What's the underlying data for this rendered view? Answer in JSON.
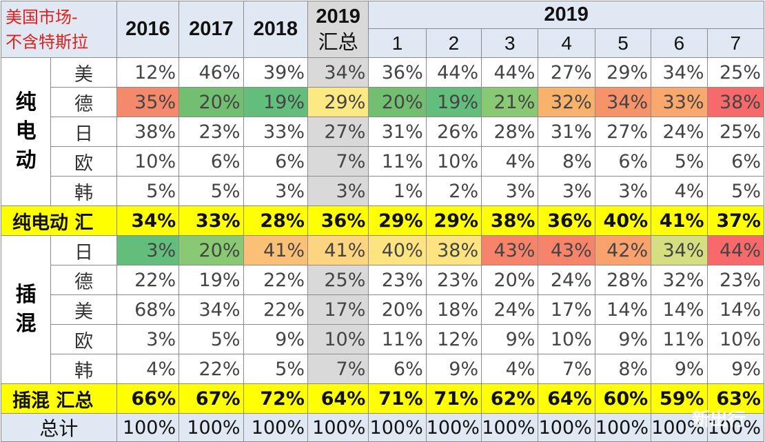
{
  "header": {
    "corner_line1": "美国市场-",
    "corner_line2": "不含特斯拉",
    "years": [
      "2016",
      "2017",
      "2018"
    ],
    "summary_year": "2019",
    "summary_label": "汇总",
    "span_year": "2019",
    "months": [
      "1",
      "2",
      "3",
      "4",
      "5",
      "6",
      "7"
    ]
  },
  "bev_group_label": "纯电动",
  "phev_group_label": "插混",
  "total_label": "总计",
  "watermark": "新出行",
  "colors": {
    "header_bg": "#dfe8f3",
    "summary_row_bg": "#ffff00",
    "summary_col_bg": "#d9d9d9",
    "corner_text": "#e0201c"
  },
  "chart_data": {
    "type": "table",
    "title": "美国市场-不含特斯拉",
    "columns": [
      "2016",
      "2017",
      "2018",
      "2019汇总",
      "2019-1",
      "2019-2",
      "2019-3",
      "2019-4",
      "2019-5",
      "2019-6",
      "2019-7"
    ],
    "sections": [
      {
        "name": "纯电动",
        "rows": [
          {
            "label": "美",
            "values": [
              "12%",
              "46%",
              "39%",
              "34%",
              "36%",
              "44%",
              "44%",
              "27%",
              "29%",
              "34%",
              "25%"
            ]
          },
          {
            "label": "德",
            "values": [
              "35%",
              "20%",
              "19%",
              "29%",
              "20%",
              "19%",
              "21%",
              "32%",
              "34%",
              "33%",
              "38%"
            ],
            "colors": [
              "#f4896b",
              "#72bf72",
              "#63be7b",
              "#fce983",
              "#72bf72",
              "#63be7b",
              "#8ac974",
              "#f9b26c",
              "#f7936b",
              "#faa86d",
              "#f8696b"
            ]
          },
          {
            "label": "日",
            "values": [
              "38%",
              "23%",
              "33%",
              "27%",
              "31%",
              "26%",
              "28%",
              "31%",
              "27%",
              "24%",
              "25%"
            ]
          },
          {
            "label": "欧",
            "values": [
              "10%",
              "6%",
              "6%",
              "7%",
              "11%",
              "10%",
              "4%",
              "8%",
              "6%",
              "5%",
              "6%"
            ]
          },
          {
            "label": "韩",
            "values": [
              "5%",
              "5%",
              "3%",
              "3%",
              "1%",
              "2%",
              "3%",
              "3%",
              "3%",
              "4%",
              "5%"
            ]
          }
        ],
        "summary": {
          "label": "纯电动 汇",
          "values": [
            "34%",
            "33%",
            "28%",
            "36%",
            "29%",
            "29%",
            "38%",
            "36%",
            "40%",
            "41%",
            "37%"
          ]
        }
      },
      {
        "name": "插混",
        "rows": [
          {
            "label": "日",
            "values": [
              "3%",
              "20%",
              "41%",
              "41%",
              "40%",
              "38%",
              "43%",
              "43%",
              "42%",
              "34%",
              "44%"
            ],
            "colors": [
              "#63be7b",
              "#8ac974",
              "#fbc077",
              "#fdd47f",
              "#fde481",
              "#fde481",
              "#f7836b",
              "#f7836b",
              "#f9a26d",
              "#d5df82",
              "#f8696b"
            ]
          },
          {
            "label": "德",
            "values": [
              "22%",
              "19%",
              "22%",
              "25%",
              "23%",
              "23%",
              "20%",
              "24%",
              "28%",
              "32%",
              "23%"
            ]
          },
          {
            "label": "美",
            "values": [
              "68%",
              "34%",
              "22%",
              "17%",
              "20%",
              "18%",
              "24%",
              "17%",
              "14%",
              "14%",
              "14%"
            ]
          },
          {
            "label": "欧",
            "values": [
              "3%",
              "5%",
              "9%",
              "10%",
              "11%",
              "12%",
              "9%",
              "10%",
              "9%",
              "11%",
              "10%"
            ]
          },
          {
            "label": "韩",
            "values": [
              "4%",
              "22%",
              "5%",
              "7%",
              "6%",
              "9%",
              "4%",
              "7%",
              "8%",
              "9%",
              "9%"
            ]
          }
        ],
        "summary": {
          "label": "插混 汇总",
          "values": [
            "66%",
            "67%",
            "72%",
            "64%",
            "71%",
            "71%",
            "62%",
            "64%",
            "60%",
            "59%",
            "63%"
          ]
        }
      }
    ],
    "total": {
      "label": "总计",
      "values": [
        "100%",
        "100%",
        "100%",
        "100%",
        "100%",
        "100%",
        "100%",
        "100%",
        "100%",
        "100%",
        "100%"
      ]
    }
  }
}
